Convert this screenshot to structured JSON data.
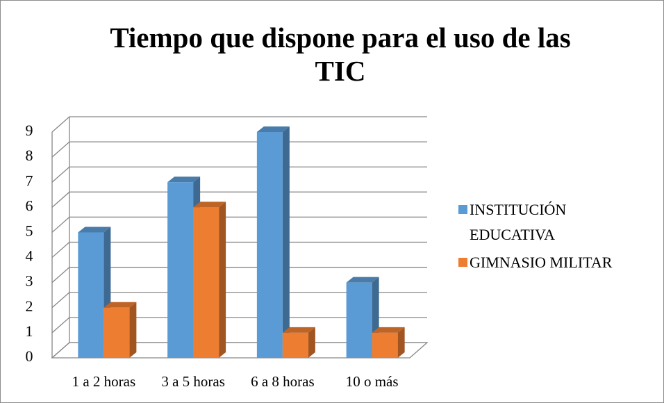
{
  "chart_data": {
    "type": "bar3d",
    "title": "Tiempo que dispone para el uso de las TIC",
    "categories": [
      "1 a 2 horas",
      "3 a 5 horas",
      "6 a 8 horas",
      "10 o más"
    ],
    "series": [
      {
        "name": "INSTITUCIÓN EDUCATIVA",
        "color": "#5b9bd5",
        "values": [
          5,
          7,
          9,
          3
        ]
      },
      {
        "name": "GIMNASIO MILITAR",
        "color": "#ed7d31",
        "values": [
          2,
          6,
          1,
          1
        ]
      }
    ],
    "ylim": [
      0,
      9
    ],
    "yticks": [
      0,
      1,
      2,
      3,
      4,
      5,
      6,
      7,
      8,
      9
    ],
    "grid": true,
    "legend": "right"
  }
}
